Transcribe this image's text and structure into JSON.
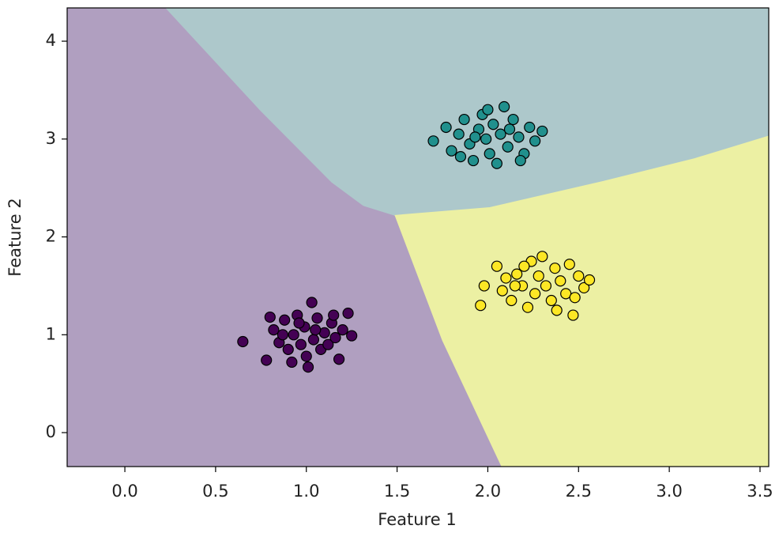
{
  "chart_data": {
    "type": "scatter",
    "xlabel": "Feature 1",
    "ylabel": "Feature 2",
    "xlim": [
      -0.318,
      3.548
    ],
    "ylim": [
      -0.347,
      4.34
    ],
    "xticks": [
      {
        "value": 0,
        "label": "0.0"
      },
      0.5,
      {
        "value": 1,
        "label": "1.0"
      },
      1.5,
      {
        "value": 2,
        "label": "2.0"
      },
      2.5,
      {
        "value": 3,
        "label": "3.0"
      },
      3.5
    ],
    "yticks": [
      0,
      1,
      2,
      3,
      4
    ],
    "regions": [
      {
        "color": "#b09fc0",
        "x": [
          -0.318,
          0.226,
          0.749,
          1.14,
          1.315,
          1.489,
          1.75,
          2.077,
          -0.318
        ],
        "y": [
          4.34,
          4.34,
          3.29,
          2.56,
          2.32,
          2.22,
          0.945,
          -0.347,
          -0.347
        ]
      },
      {
        "color": "#adc8cb",
        "x": [
          0.226,
          3.548,
          3.548,
          3.14,
          2.62,
          2.011,
          1.489,
          1.315,
          1.14,
          0.749
        ],
        "y": [
          4.34,
          4.34,
          3.03,
          2.8,
          2.56,
          2.3,
          2.22,
          2.32,
          2.56,
          3.29
        ]
      },
      {
        "color": "#ecf0a3",
        "x": [
          1.489,
          2.011,
          2.62,
          3.14,
          3.548,
          3.548,
          2.077,
          1.75
        ],
        "y": [
          2.22,
          2.3,
          2.56,
          2.8,
          3.03,
          -0.347,
          -0.347,
          0.945
        ]
      }
    ],
    "series": [
      {
        "color": "#440154",
        "x": [
          0.65,
          0.78,
          0.82,
          0.85,
          0.88,
          0.9,
          0.93,
          0.95,
          0.97,
          0.99,
          1.0,
          1.01,
          1.03,
          1.04,
          1.06,
          1.08,
          1.1,
          1.12,
          1.14,
          1.16,
          1.18,
          1.2,
          1.23,
          1.25,
          0.8,
          0.92,
          1.15,
          0.87,
          1.05,
          0.96
        ],
        "y": [
          0.93,
          0.74,
          1.05,
          0.92,
          1.15,
          0.85,
          1.0,
          1.2,
          0.9,
          1.08,
          0.78,
          0.67,
          1.33,
          0.95,
          1.17,
          0.85,
          1.02,
          0.9,
          1.12,
          0.97,
          0.75,
          1.05,
          1.22,
          0.99,
          1.18,
          0.72,
          1.2,
          1.0,
          1.05,
          1.12
        ]
      },
      {
        "color": "#21908d",
        "x": [
          1.7,
          1.77,
          1.8,
          1.84,
          1.87,
          1.9,
          1.92,
          1.95,
          1.97,
          1.99,
          2.01,
          2.03,
          2.05,
          2.07,
          2.09,
          2.11,
          2.14,
          2.17,
          2.2,
          2.23,
          2.26,
          2.3,
          1.85,
          2.0,
          2.12,
          1.93,
          2.18
        ],
        "y": [
          2.98,
          3.12,
          2.88,
          3.05,
          3.2,
          2.95,
          2.78,
          3.1,
          3.25,
          3.0,
          2.85,
          3.15,
          2.75,
          3.05,
          3.33,
          2.92,
          3.2,
          3.02,
          2.85,
          3.12,
          2.98,
          3.08,
          2.82,
          3.3,
          3.1,
          3.02,
          2.78
        ]
      },
      {
        "color": "#fde725",
        "x": [
          1.96,
          1.98,
          2.05,
          2.08,
          2.1,
          2.13,
          2.16,
          2.19,
          2.22,
          2.24,
          2.26,
          2.28,
          2.3,
          2.32,
          2.35,
          2.37,
          2.4,
          2.43,
          2.45,
          2.47,
          2.5,
          2.53,
          2.56,
          2.2,
          2.38,
          2.15,
          2.48
        ],
        "y": [
          1.3,
          1.5,
          1.7,
          1.45,
          1.58,
          1.35,
          1.62,
          1.5,
          1.28,
          1.75,
          1.42,
          1.6,
          1.8,
          1.5,
          1.35,
          1.68,
          1.55,
          1.42,
          1.72,
          1.2,
          1.6,
          1.48,
          1.56,
          1.7,
          1.25,
          1.5,
          1.38
        ]
      }
    ]
  }
}
